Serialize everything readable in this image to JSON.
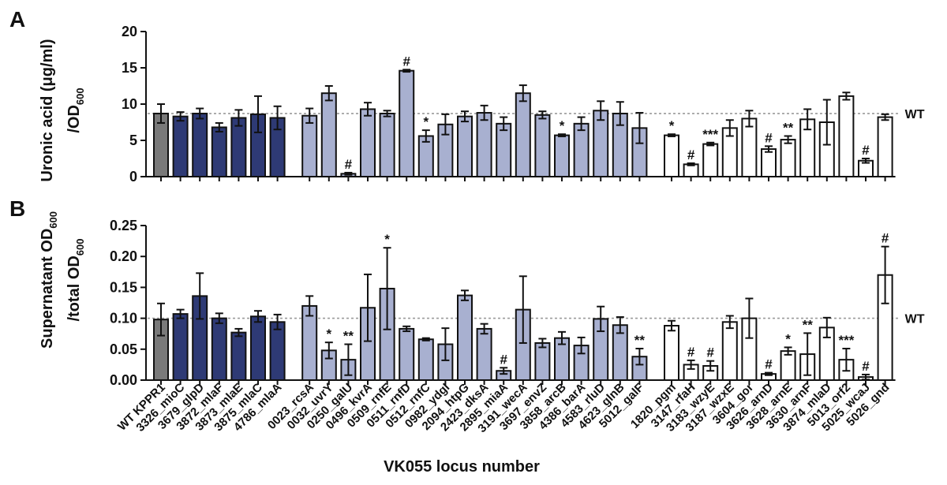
{
  "chart_data": [
    {
      "panel": "A",
      "type": "bar",
      "ylabel_line1": "Uronic acid (μg/ml)",
      "ylabel_line2": "/OD",
      "ylabel_sub": "600",
      "ylim": [
        0,
        20
      ],
      "yticks": [
        "0",
        "5",
        "10",
        "15",
        "20"
      ],
      "reference_value": 8.7,
      "reference_label": "WT",
      "values": [
        8.7,
        8.3,
        8.7,
        6.8,
        8.1,
        8.6,
        8.1,
        8.4,
        11.5,
        0.4,
        9.3,
        8.7,
        14.6,
        5.6,
        7.2,
        8.3,
        8.8,
        7.3,
        11.5,
        8.5,
        5.7,
        7.3,
        9.1,
        8.7,
        6.7,
        5.7,
        1.7,
        4.5,
        6.7,
        8.0,
        3.8,
        5.1,
        7.9,
        7.5,
        11.1,
        2.2,
        8.2
      ],
      "errors": [
        1.3,
        0.6,
        0.7,
        0.6,
        1.1,
        2.5,
        1.6,
        1.0,
        1.0,
        0.15,
        0.9,
        0.4,
        0.15,
        0.8,
        1.4,
        0.7,
        1.0,
        0.9,
        1.1,
        0.5,
        0.15,
        0.9,
        1.3,
        1.6,
        2.1,
        0.15,
        0.15,
        0.2,
        1.1,
        1.1,
        0.4,
        0.5,
        1.4,
        3.1,
        0.5,
        0.3,
        0.4
      ],
      "significance": [
        "",
        "",
        "",
        "",
        "",
        "",
        "",
        "",
        "",
        "#",
        "",
        "",
        "#",
        "*",
        "",
        "",
        "",
        "",
        "",
        "",
        "*",
        "",
        "",
        "",
        "",
        "*",
        "#",
        "***",
        "",
        "",
        "#",
        "**",
        "",
        "",
        "",
        "#",
        ""
      ]
    },
    {
      "panel": "B",
      "type": "bar",
      "ylabel_line1": "Supernatant OD",
      "ylabel_line1_sub": "600",
      "ylabel_line2": "/total OD",
      "ylabel_line2_sub": "600",
      "ylim": [
        0,
        0.25
      ],
      "yticks": [
        "0.00",
        "0.05",
        "0.10",
        "0.15",
        "0.20",
        "0.25"
      ],
      "reference_value": 0.1,
      "reference_label": "WT",
      "values": [
        0.098,
        0.107,
        0.136,
        0.1,
        0.077,
        0.103,
        0.094,
        0.12,
        0.048,
        0.033,
        0.117,
        0.148,
        0.083,
        0.066,
        0.058,
        0.137,
        0.083,
        0.015,
        0.114,
        0.06,
        0.068,
        0.056,
        0.099,
        0.089,
        0.038,
        0.088,
        0.025,
        0.023,
        0.094,
        0.1,
        0.01,
        0.047,
        0.042,
        0.085,
        0.033,
        0.005,
        0.17
      ],
      "errors": [
        0.026,
        0.007,
        0.037,
        0.008,
        0.006,
        0.009,
        0.012,
        0.016,
        0.013,
        0.025,
        0.054,
        0.066,
        0.004,
        0.002,
        0.026,
        0.008,
        0.008,
        0.005,
        0.054,
        0.007,
        0.01,
        0.013,
        0.02,
        0.013,
        0.013,
        0.008,
        0.007,
        0.008,
        0.01,
        0.032,
        0.002,
        0.006,
        0.034,
        0.016,
        0.018,
        0.004,
        0.046
      ],
      "significance": [
        "",
        "",
        "",
        "",
        "",
        "",
        "",
        "",
        "*",
        "**",
        "",
        "*",
        "",
        "",
        "",
        "",
        "",
        "#",
        "",
        "",
        "",
        "",
        "",
        "",
        "**",
        "",
        "#",
        "#",
        "",
        "",
        "#",
        "*",
        "**",
        "",
        "***",
        "#",
        "#"
      ]
    }
  ],
  "categories": [
    "WT KPPR1",
    "3326_mioC",
    "3679_glpD",
    "3872_mlaF",
    "3873_mlaE",
    "3875_mlaC",
    "4786_mlaA",
    "0023_rcsA",
    "0032_uvrY",
    "0250_galU",
    "0496_kvrA",
    "0509_rnfE",
    "0511_rnfD",
    "0512_rnfC",
    "0982_ydgI",
    "2094_htpG",
    "2423_dksA",
    "2895_miaA",
    "3191_wecA",
    "3697_envZ",
    "3858_arcB",
    "4386_barA",
    "4583_rluD",
    "4623_glnB",
    "5012_galF",
    "1820_pgm",
    "3147_rfaH",
    "3183_wzyE",
    "3187_wzxE",
    "3604_gor",
    "3626_arnD",
    "3628_arnE",
    "3630_arnF",
    "3874_mlaD",
    "5013_orf2",
    "5025_wcaJ",
    "5026_gnd"
  ],
  "groups": [
    "control",
    "control-group",
    "control-group",
    "control-group",
    "control-group",
    "control-group",
    "control-group",
    "light",
    "light",
    "light",
    "light",
    "light",
    "light",
    "light",
    "light",
    "light",
    "light",
    "light",
    "light",
    "light",
    "light",
    "light",
    "light",
    "light",
    "light",
    "white",
    "white",
    "white",
    "white",
    "white",
    "white",
    "white",
    "white",
    "white",
    "white",
    "white",
    "white"
  ],
  "colors": {
    "control": "#7a7a7a",
    "control-group": "#2e3a75",
    "light": "#a8b0d0",
    "white": "#ffffff",
    "reference": "#9a9a9a"
  },
  "xlabel": "VK055 locus number"
}
